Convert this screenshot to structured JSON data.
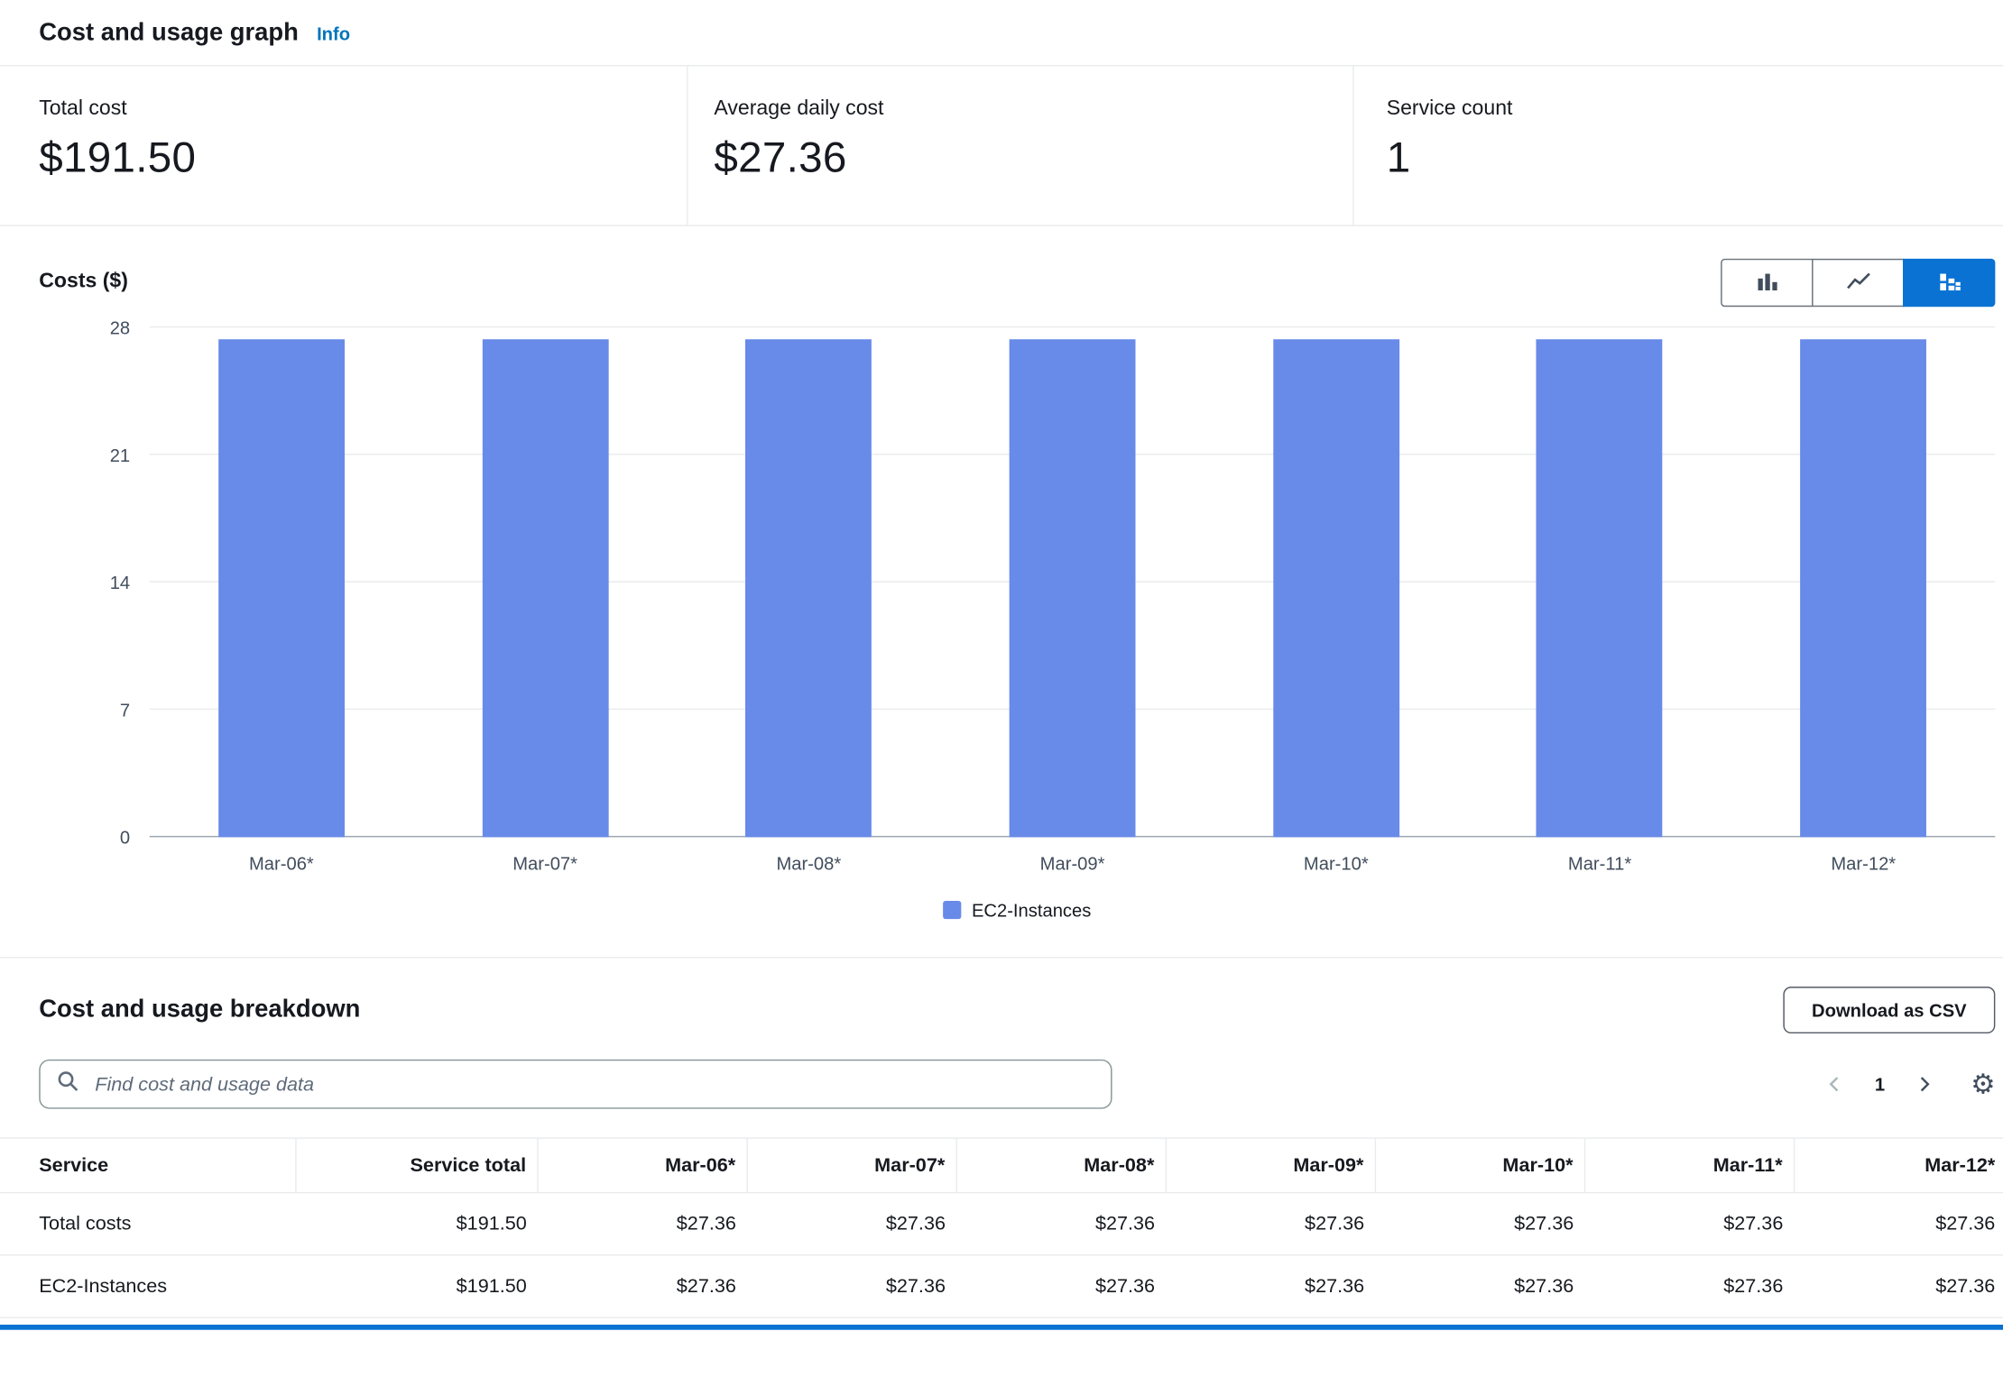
{
  "header": {
    "title": "Cost and usage graph",
    "info_label": "Info"
  },
  "metrics": {
    "total_cost": {
      "label": "Total cost",
      "value": "$191.50"
    },
    "average_daily_cost": {
      "label": "Average daily cost",
      "value": "$27.36"
    },
    "service_count": {
      "label": "Service count",
      "value": "1"
    }
  },
  "chart_toolbar": {
    "selected_index": 2,
    "buttons": [
      "bar-chart",
      "line-chart",
      "stacked-bar-chart"
    ]
  },
  "chart_data": {
    "type": "bar",
    "title": "Costs ($)",
    "categories": [
      "Mar-06*",
      "Mar-07*",
      "Mar-08*",
      "Mar-09*",
      "Mar-10*",
      "Mar-11*",
      "Mar-12*"
    ],
    "series": [
      {
        "name": "EC2-Instances",
        "values": [
          27.36,
          27.36,
          27.36,
          27.36,
          27.36,
          27.36,
          27.36
        ]
      }
    ],
    "ylabel": "Costs ($)",
    "ylim": [
      0,
      28
    ],
    "yticks": [
      0,
      7,
      14,
      21,
      28
    ],
    "grid": "horizontal",
    "legend_position": "bottom",
    "bar_color": "#688ae8"
  },
  "breakdown": {
    "title": "Cost and usage breakdown",
    "download_csv_label": "Download as CSV",
    "search_placeholder": "Find cost and usage data",
    "pagination": {
      "current_page": "1"
    },
    "table": {
      "columns": [
        "Service",
        "Service total",
        "Mar-06*",
        "Mar-07*",
        "Mar-08*",
        "Mar-09*",
        "Mar-10*",
        "Mar-11*",
        "Mar-12*"
      ],
      "rows": [
        {
          "service": "Total costs",
          "service_total": "$191.50",
          "values": [
            "$27.36",
            "$27.36",
            "$27.36",
            "$27.36",
            "$27.36",
            "$27.36",
            "$27.36"
          ]
        },
        {
          "service": "EC2-Instances",
          "service_total": "$191.50",
          "values": [
            "$27.36",
            "$27.36",
            "$27.36",
            "$27.36",
            "$27.36",
            "$27.36",
            "$27.36"
          ]
        }
      ]
    }
  },
  "colors": {
    "accent": "#0972d3",
    "link": "#0073bb",
    "bar": "#688ae8"
  }
}
